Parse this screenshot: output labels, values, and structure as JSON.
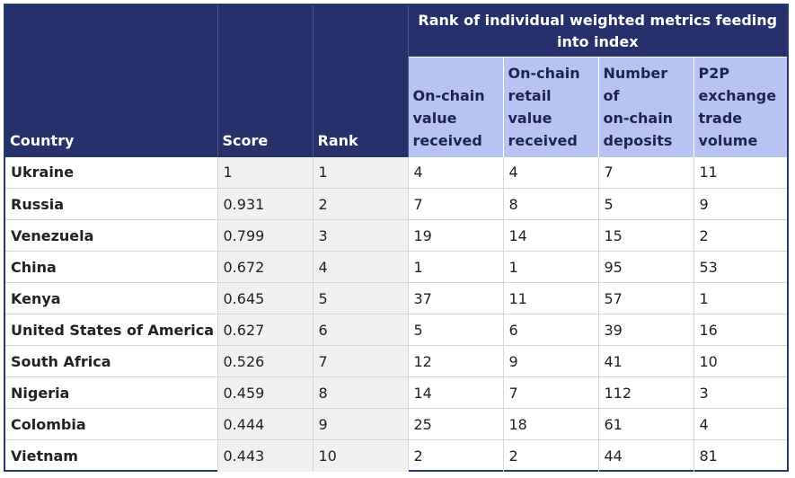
{
  "table": {
    "headers": {
      "country": "Country",
      "score": "Score",
      "rank": "Rank",
      "group": "Rank of individual weighted metrics feeding into index",
      "m1": [
        "On-chain",
        "value",
        "received"
      ],
      "m2": [
        "On-chain",
        "retail",
        "value",
        "received"
      ],
      "m3": [
        "Number of",
        "on-chain",
        "deposits"
      ],
      "m4": [
        "P2P",
        "exchange",
        "trade",
        "volume"
      ]
    },
    "rows": [
      [
        "Ukraine",
        "1",
        "1",
        "4",
        "4",
        "7",
        "11"
      ],
      [
        "Russia",
        "0.931",
        "2",
        "7",
        "8",
        "5",
        "9"
      ],
      [
        "Venezuela",
        "0.799",
        "3",
        "19",
        "14",
        "15",
        "2"
      ],
      [
        "China",
        "0.672",
        "4",
        "1",
        "1",
        "95",
        "53"
      ],
      [
        "Kenya",
        "0.645",
        "5",
        "37",
        "11",
        "57",
        "1"
      ],
      [
        "United States of America",
        "0.627",
        "6",
        "5",
        "6",
        "39",
        "16"
      ],
      [
        "South Africa",
        "0.526",
        "7",
        "12",
        "9",
        "41",
        "10"
      ],
      [
        "Nigeria",
        "0.459",
        "8",
        "14",
        "7",
        "112",
        "3"
      ],
      [
        "Colombia",
        "0.444",
        "9",
        "25",
        "18",
        "61",
        "4"
      ],
      [
        "Vietnam",
        "0.443",
        "10",
        "2",
        "2",
        "44",
        "81"
      ]
    ]
  },
  "colors": {
    "header_dark": "#26306a",
    "header_light": "#b7c3f1",
    "shaded_cell": "#f0f0f0",
    "border": "#2b3a6e"
  },
  "chart_data": {
    "type": "table",
    "columns": [
      "Country",
      "Score",
      "Rank",
      "On-chain value received",
      "On-chain retail value received",
      "Number of on-chain deposits",
      "P2P exchange trade volume"
    ],
    "column_group": {
      "label": "Rank of individual weighted metrics feeding into index",
      "columns": [
        "On-chain value received",
        "On-chain retail value received",
        "Number of on-chain deposits",
        "P2P exchange trade volume"
      ]
    },
    "rows": [
      {
        "country": "Ukraine",
        "score": 1,
        "rank": 1,
        "onchain_value": 4,
        "onchain_retail_value": 4,
        "onchain_deposits": 7,
        "p2p_volume": 11
      },
      {
        "country": "Russia",
        "score": 0.931,
        "rank": 2,
        "onchain_value": 7,
        "onchain_retail_value": 8,
        "onchain_deposits": 5,
        "p2p_volume": 9
      },
      {
        "country": "Venezuela",
        "score": 0.799,
        "rank": 3,
        "onchain_value": 19,
        "onchain_retail_value": 14,
        "onchain_deposits": 15,
        "p2p_volume": 2
      },
      {
        "country": "China",
        "score": 0.672,
        "rank": 4,
        "onchain_value": 1,
        "onchain_retail_value": 1,
        "onchain_deposits": 95,
        "p2p_volume": 53
      },
      {
        "country": "Kenya",
        "score": 0.645,
        "rank": 5,
        "onchain_value": 37,
        "onchain_retail_value": 11,
        "onchain_deposits": 57,
        "p2p_volume": 1
      },
      {
        "country": "United States of America",
        "score": 0.627,
        "rank": 6,
        "onchain_value": 5,
        "onchain_retail_value": 6,
        "onchain_deposits": 39,
        "p2p_volume": 16
      },
      {
        "country": "South Africa",
        "score": 0.526,
        "rank": 7,
        "onchain_value": 12,
        "onchain_retail_value": 9,
        "onchain_deposits": 41,
        "p2p_volume": 10
      },
      {
        "country": "Nigeria",
        "score": 0.459,
        "rank": 8,
        "onchain_value": 14,
        "onchain_retail_value": 7,
        "onchain_deposits": 112,
        "p2p_volume": 3
      },
      {
        "country": "Colombia",
        "score": 0.444,
        "rank": 9,
        "onchain_value": 25,
        "onchain_retail_value": 18,
        "onchain_deposits": 61,
        "p2p_volume": 4
      },
      {
        "country": "Vietnam",
        "score": 0.443,
        "rank": 10,
        "onchain_value": 2,
        "onchain_retail_value": 2,
        "onchain_deposits": 44,
        "p2p_volume": 81
      }
    ]
  }
}
